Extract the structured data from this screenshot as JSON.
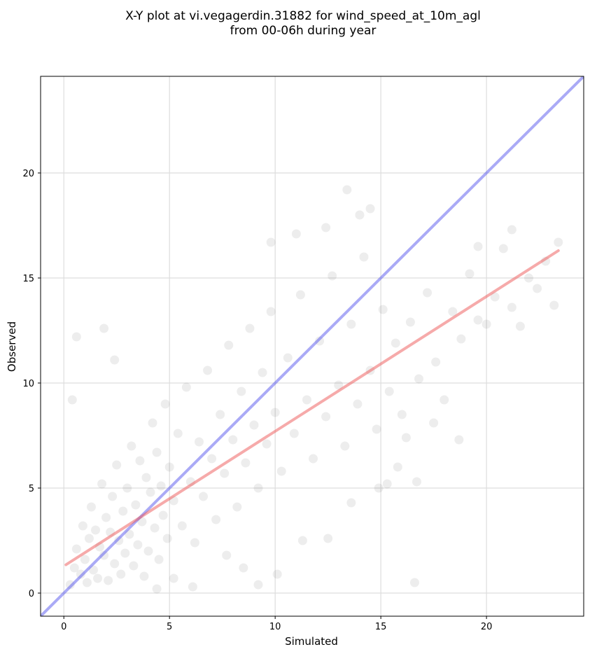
{
  "chart_data": {
    "type": "scatter",
    "title_line1": "X-Y plot at vi.vegagerdin.31882 for wind_speed_at_10m_agl",
    "title_line2": "from 00-06h during year",
    "xlabel": "Simulated",
    "ylabel": "Observed",
    "xlim": [
      -1.1,
      24.6
    ],
    "ylim": [
      -1.1,
      24.6
    ],
    "xticks": [
      0,
      5,
      10,
      15,
      20
    ],
    "yticks": [
      0,
      5,
      10,
      15,
      20
    ],
    "grid": true,
    "point_color": "#000000",
    "point_opacity": 0.07,
    "reference_lines": [
      {
        "label": "1:1",
        "x": [
          -1.1,
          24.6
        ],
        "y": [
          -1.1,
          24.6
        ],
        "color": "#5555ee"
      },
      {
        "label": "fit",
        "x": [
          0.1,
          23.4
        ],
        "y": [
          1.35,
          16.3
        ],
        "color": "#ee5555"
      }
    ],
    "points": [
      [
        0.3,
        0.4
      ],
      [
        0.5,
        1.2
      ],
      [
        0.6,
        2.1
      ],
      [
        0.8,
        0.9
      ],
      [
        0.9,
        3.2
      ],
      [
        1.0,
        1.6
      ],
      [
        1.1,
        0.5
      ],
      [
        1.2,
        2.6
      ],
      [
        1.3,
        4.1
      ],
      [
        1.4,
        1.1
      ],
      [
        1.5,
        3.0
      ],
      [
        1.6,
        0.7
      ],
      [
        1.7,
        2.2
      ],
      [
        1.8,
        5.2
      ],
      [
        1.9,
        1.8
      ],
      [
        2.0,
        3.6
      ],
      [
        2.1,
        0.6
      ],
      [
        2.2,
        2.9
      ],
      [
        2.3,
        4.6
      ],
      [
        2.4,
        1.4
      ],
      [
        2.5,
        6.1
      ],
      [
        2.6,
        2.5
      ],
      [
        2.7,
        0.9
      ],
      [
        2.8,
        3.9
      ],
      [
        2.9,
        1.9
      ],
      [
        3.0,
        5.0
      ],
      [
        3.1,
        2.8
      ],
      [
        3.2,
        7.0
      ],
      [
        3.3,
        1.3
      ],
      [
        3.4,
        4.2
      ],
      [
        3.5,
        2.3
      ],
      [
        3.6,
        6.3
      ],
      [
        3.7,
        3.4
      ],
      [
        3.8,
        0.8
      ],
      [
        3.9,
        5.5
      ],
      [
        4.0,
        2.0
      ],
      [
        4.1,
        4.8
      ],
      [
        4.2,
        8.1
      ],
      [
        4.3,
        3.1
      ],
      [
        4.4,
        6.7
      ],
      [
        4.5,
        1.6
      ],
      [
        4.6,
        5.1
      ],
      [
        4.7,
        3.7
      ],
      [
        4.8,
        9.0
      ],
      [
        4.9,
        2.6
      ],
      [
        5.0,
        6.0
      ],
      [
        5.2,
        4.4
      ],
      [
        5.4,
        7.6
      ],
      [
        5.6,
        3.2
      ],
      [
        5.8,
        9.8
      ],
      [
        6.0,
        5.3
      ],
      [
        6.2,
        2.4
      ],
      [
        6.4,
        7.2
      ],
      [
        6.6,
        4.6
      ],
      [
        6.8,
        10.6
      ],
      [
        7.0,
        6.4
      ],
      [
        7.2,
        3.5
      ],
      [
        7.4,
        8.5
      ],
      [
        7.6,
        5.7
      ],
      [
        7.8,
        11.8
      ],
      [
        8.0,
        7.3
      ],
      [
        8.2,
        4.1
      ],
      [
        8.4,
        9.6
      ],
      [
        8.6,
        6.2
      ],
      [
        8.8,
        12.6
      ],
      [
        9.0,
        8.0
      ],
      [
        9.2,
        5.0
      ],
      [
        9.4,
        10.5
      ],
      [
        9.6,
        7.1
      ],
      [
        9.8,
        13.4
      ],
      [
        10.0,
        8.6
      ],
      [
        10.3,
        5.8
      ],
      [
        10.6,
        11.2
      ],
      [
        10.9,
        7.6
      ],
      [
        11.2,
        14.2
      ],
      [
        11.5,
        9.2
      ],
      [
        11.8,
        6.4
      ],
      [
        12.1,
        12.0
      ],
      [
        12.4,
        8.4
      ],
      [
        12.7,
        15.1
      ],
      [
        13.0,
        9.9
      ],
      [
        13.3,
        7.0
      ],
      [
        13.6,
        12.8
      ],
      [
        13.9,
        9.0
      ],
      [
        14.2,
        16.0
      ],
      [
        14.5,
        10.6
      ],
      [
        14.8,
        7.8
      ],
      [
        15.1,
        13.5
      ],
      [
        15.4,
        9.6
      ],
      [
        15.7,
        11.9
      ],
      [
        16.0,
        8.5
      ],
      [
        16.4,
        12.9
      ],
      [
        16.8,
        10.2
      ],
      [
        17.2,
        14.3
      ],
      [
        17.6,
        11.0
      ],
      [
        18.0,
        9.2
      ],
      [
        18.4,
        13.4
      ],
      [
        18.8,
        12.1
      ],
      [
        19.2,
        15.2
      ],
      [
        19.6,
        13.0
      ],
      [
        20.0,
        12.8
      ],
      [
        20.4,
        14.1
      ],
      [
        20.8,
        16.4
      ],
      [
        21.2,
        13.6
      ],
      [
        21.6,
        12.7
      ],
      [
        22.0,
        15.0
      ],
      [
        22.4,
        14.5
      ],
      [
        22.8,
        15.8
      ],
      [
        23.2,
        13.7
      ],
      [
        23.4,
        16.7
      ],
      [
        0.4,
        9.2
      ],
      [
        0.6,
        12.2
      ],
      [
        1.9,
        12.6
      ],
      [
        2.4,
        11.1
      ],
      [
        13.4,
        19.2
      ],
      [
        14.0,
        18.0
      ],
      [
        14.5,
        18.3
      ],
      [
        9.8,
        16.7
      ],
      [
        11.0,
        17.1
      ],
      [
        12.4,
        17.4
      ],
      [
        16.6,
        0.5
      ],
      [
        9.2,
        0.4
      ],
      [
        10.1,
        0.9
      ],
      [
        8.5,
        1.2
      ],
      [
        7.7,
        1.8
      ],
      [
        11.3,
        2.5
      ],
      [
        12.5,
        2.6
      ],
      [
        6.1,
        0.3
      ],
      [
        5.2,
        0.7
      ],
      [
        4.4,
        0.2
      ],
      [
        21.2,
        17.3
      ],
      [
        19.6,
        16.5
      ],
      [
        18.7,
        7.3
      ],
      [
        17.5,
        8.1
      ],
      [
        16.2,
        7.4
      ],
      [
        15.8,
        6.0
      ],
      [
        14.9,
        5.0
      ],
      [
        13.6,
        4.3
      ],
      [
        15.3,
        5.2
      ],
      [
        16.7,
        5.3
      ]
    ]
  }
}
